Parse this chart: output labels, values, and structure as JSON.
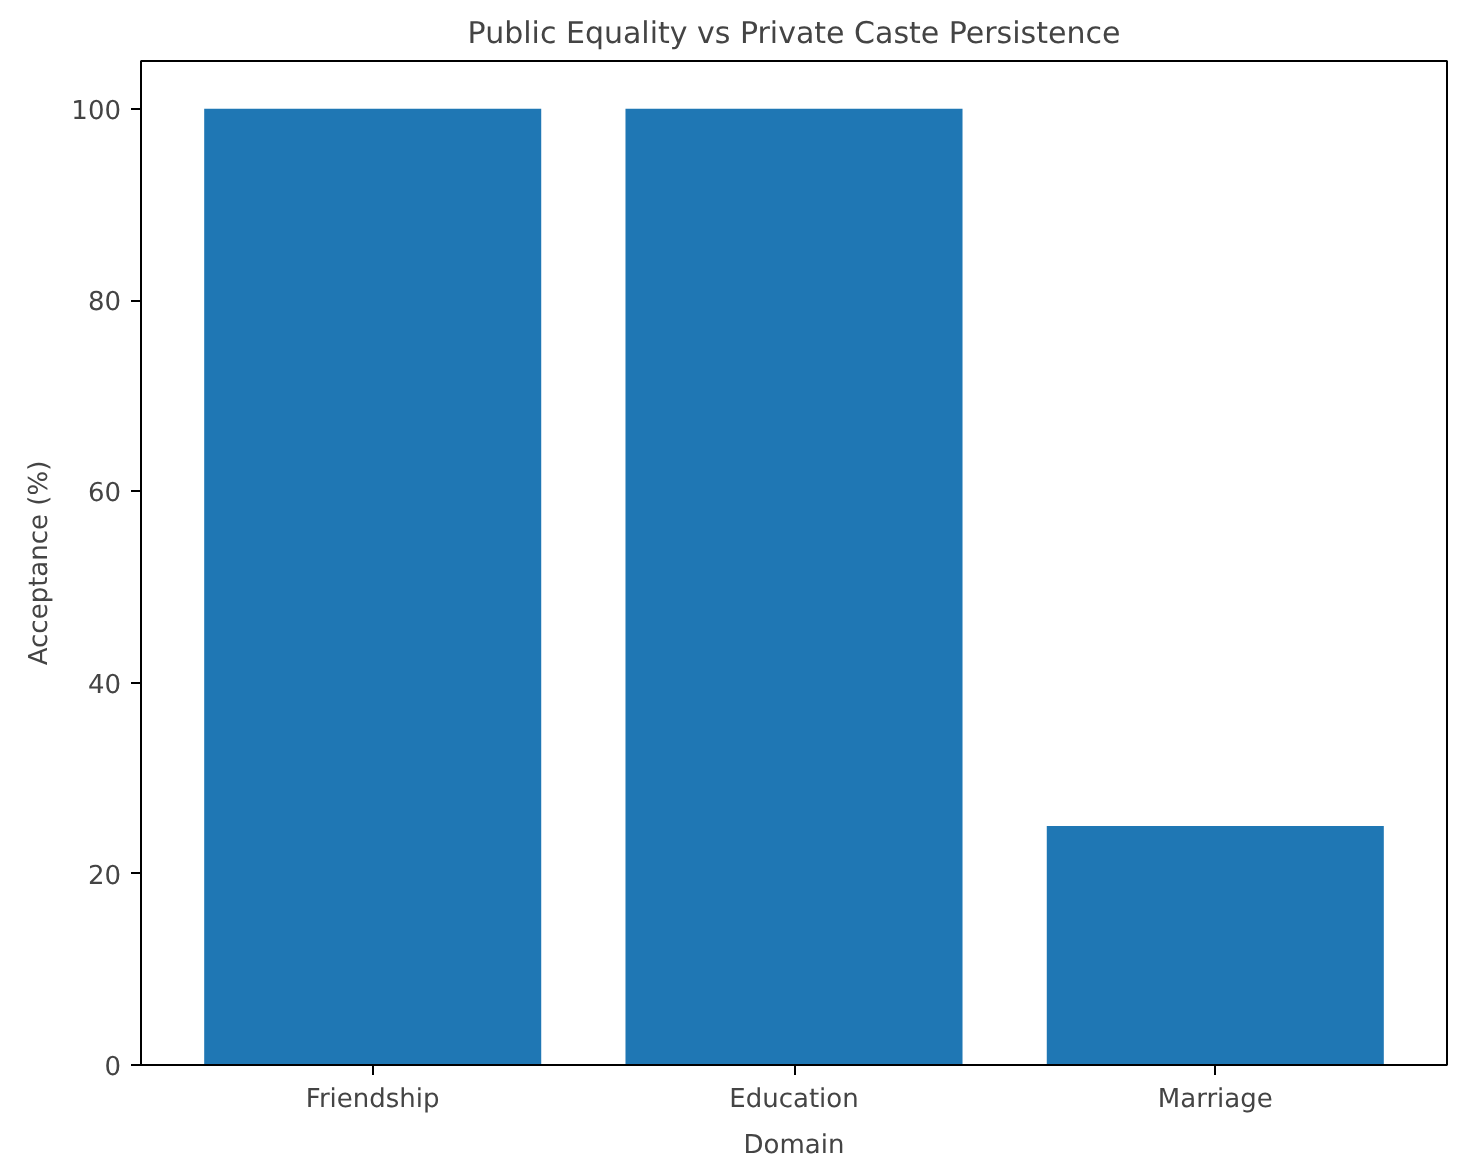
{
  "chart_data": {
    "type": "bar",
    "title": "Public Equality vs Private Caste Persistence",
    "xlabel": "Domain",
    "ylabel": "Acceptance (%)",
    "categories": [
      "Friendship",
      "Education",
      "Marriage"
    ],
    "values": [
      100,
      100,
      25
    ],
    "color": "#1f77b4",
    "ylim": [
      0,
      105
    ],
    "yticks": [
      0,
      20,
      40,
      60,
      80,
      100
    ],
    "grid": false
  }
}
